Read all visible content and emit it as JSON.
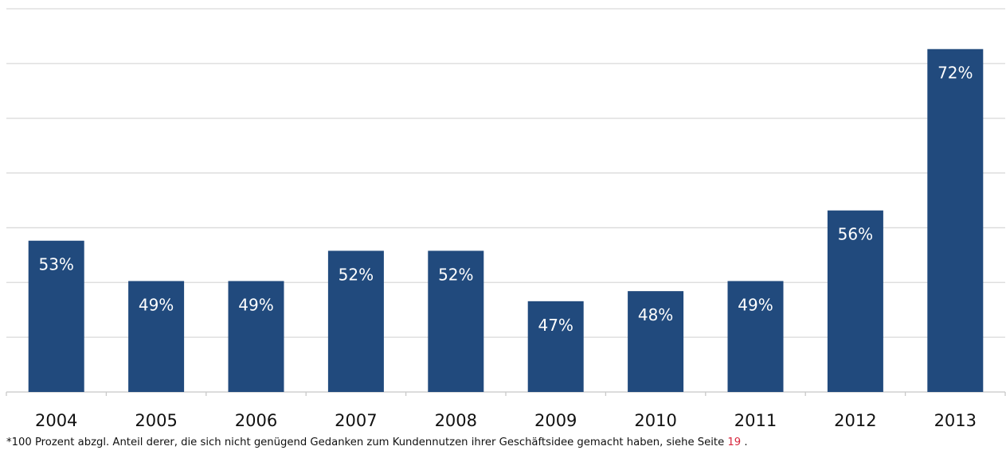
{
  "colors": {
    "bar": "#214a7d",
    "grid": "#d9d9d9",
    "axis": "#c8c8c8",
    "label_inside": "#ffffff",
    "tick_label": "#111111",
    "reference": "#d7263d"
  },
  "chart_data": {
    "type": "bar",
    "categories": [
      "2004",
      "2005",
      "2006",
      "2007",
      "2008",
      "2009",
      "2010",
      "2011",
      "2012",
      "2013"
    ],
    "values": [
      53,
      49,
      49,
      52,
      52,
      47,
      48,
      49,
      56,
      72
    ],
    "data_labels": [
      "53%",
      "49%",
      "49%",
      "52%",
      "52%",
      "47%",
      "48%",
      "49%",
      "56%",
      "72%"
    ],
    "ylim": [
      38,
      76
    ],
    "grid": true,
    "legend": "none"
  },
  "footnote": {
    "text": "*100 Prozent abzgl. Anteil derer, die sich nicht genügend Gedanken zum Kundennutzen ihrer Geschäftsidee gemacht haben, siehe Seite ",
    "page_ref": "19",
    "suffix": " ."
  }
}
